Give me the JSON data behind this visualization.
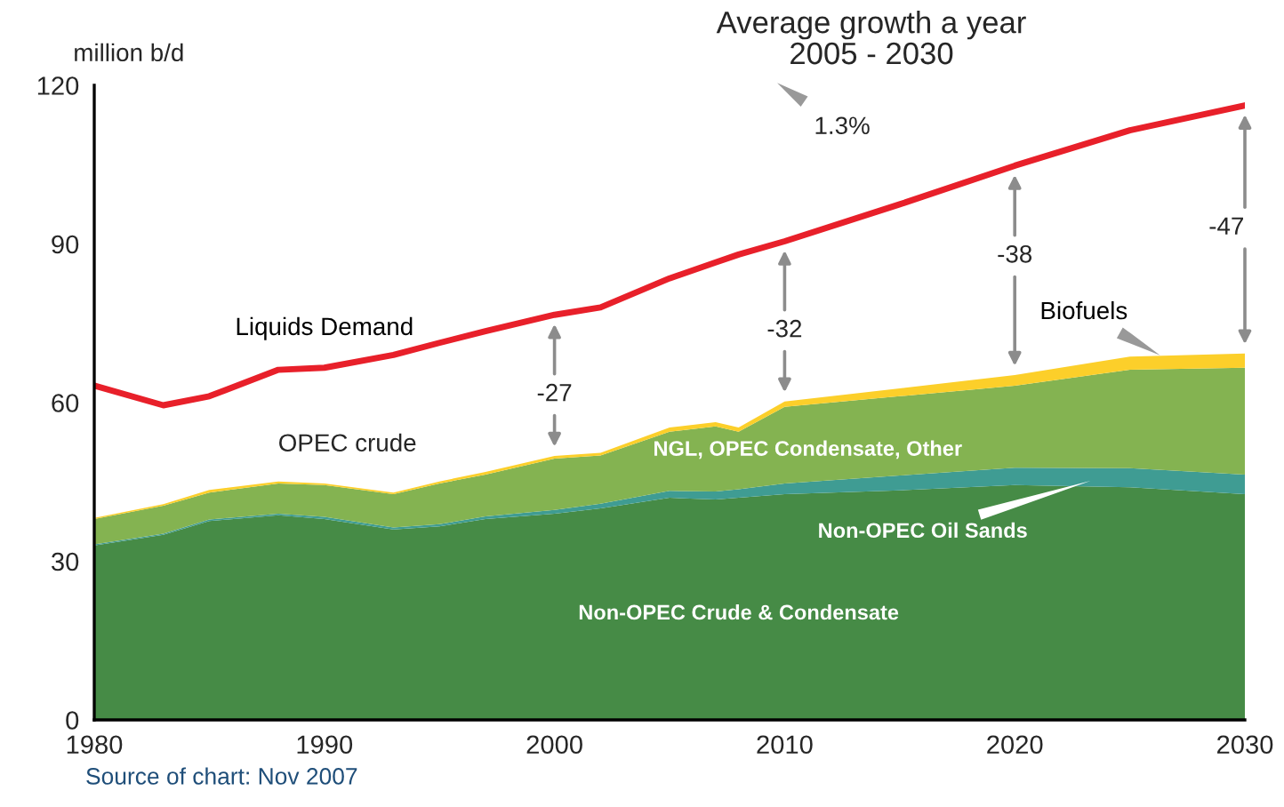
{
  "chart_data": {
    "type": "area",
    "stacked": true,
    "title": "Average growth a year\n2005 - 2030",
    "ylabel": "million b/d",
    "x": [
      1980,
      1983,
      1985,
      1988,
      1990,
      1993,
      1995,
      1997,
      2000,
      2002,
      2005,
      2007,
      2008,
      2010,
      2015,
      2020,
      2025,
      2030
    ],
    "xlim": [
      1980,
      2030
    ],
    "xticks": [
      1980,
      1990,
      2000,
      2010,
      2020,
      2030
    ],
    "ylim": [
      0,
      120
    ],
    "yticks": [
      0,
      30,
      60,
      90,
      120
    ],
    "grid": false,
    "legend": false,
    "series": [
      {
        "name": "Non-OPEC Crude & Condensate",
        "type": "area",
        "color": "#468b46",
        "values": [
          33,
          35,
          37.6,
          38.7,
          38,
          36,
          36.6,
          38,
          39,
          40,
          42,
          41.7,
          42,
          42.7,
          43.4,
          44.4,
          44,
          42.7
        ]
      },
      {
        "name": "Non-OPEC Oil Sands",
        "type": "area",
        "color": "#3f9c93",
        "values": [
          0.2,
          0.2,
          0.3,
          0.3,
          0.4,
          0.4,
          0.4,
          0.5,
          0.7,
          0.9,
          1.3,
          1.5,
          1.6,
          2,
          2.8,
          3.3,
          3.6,
          3.7
        ]
      },
      {
        "name": "NGL, OPEC Condensate, Other",
        "type": "area",
        "color": "#84b351",
        "values": [
          4.8,
          5.3,
          5.1,
          5.7,
          6,
          6.3,
          7.7,
          7.9,
          9.7,
          9.1,
          11.2,
          12.3,
          10.9,
          14.5,
          15,
          15.5,
          18.6,
          20.2
        ]
      },
      {
        "name": "Biofuels",
        "type": "area",
        "color": "#fccf2a",
        "values": [
          0.2,
          0.3,
          0.5,
          0.4,
          0.3,
          0.3,
          0.4,
          0.5,
          0.5,
          0.5,
          0.8,
          0.8,
          0.8,
          1,
          1.5,
          2,
          2.5,
          2.7
        ]
      },
      {
        "name": "Liquids Demand",
        "type": "line",
        "color": "#e8202a",
        "values": [
          63.2,
          59.5,
          61.2,
          66.2,
          66.6,
          69,
          71.3,
          73.5,
          76.6,
          78,
          83.5,
          86.5,
          88,
          90.5,
          97.5,
          104.8,
          111.5,
          116.2
        ]
      }
    ],
    "annotations": [
      "1.3%",
      "OPEC crude",
      "-27",
      "-32",
      "-38",
      "-47",
      "Source of chart: Nov 2007"
    ]
  }
}
